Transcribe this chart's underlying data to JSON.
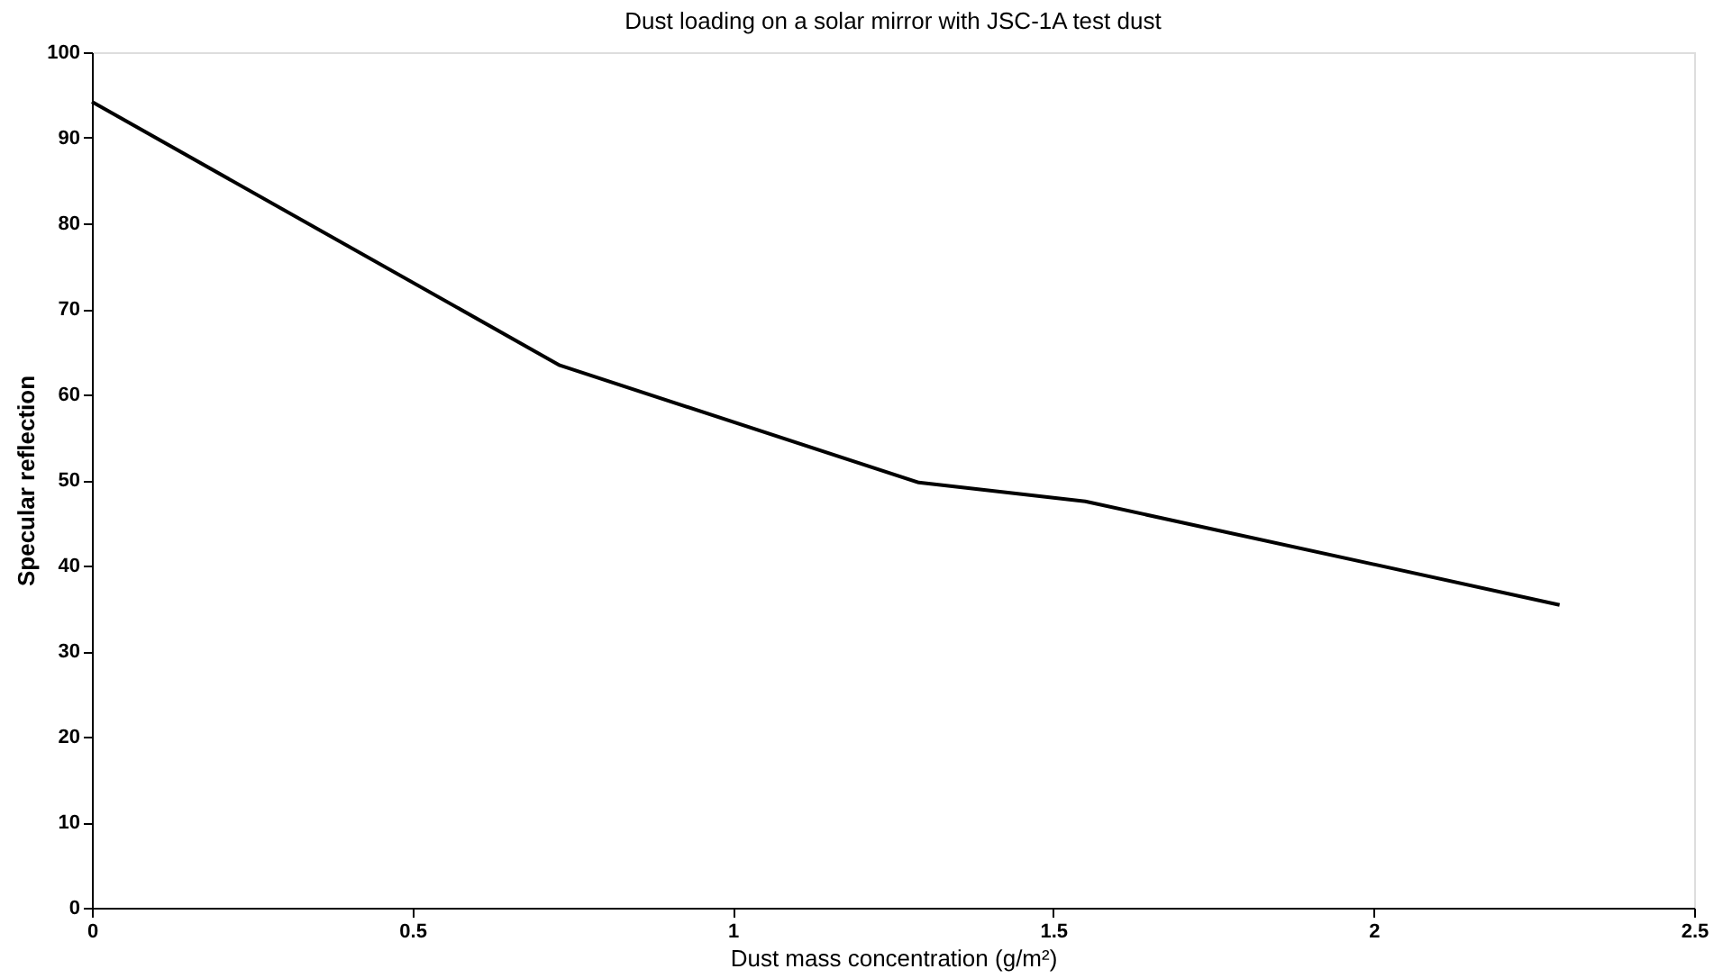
{
  "chart_data": {
    "type": "line",
    "title": "Dust loading on a solar mirror with JSC-1A test dust",
    "xlabel": "Dust mass concentration (g/m²)",
    "ylabel": "Specular reflection",
    "x": [
      0,
      0.73,
      1.29,
      1.55,
      2.29
    ],
    "series": [
      {
        "color": "#000000",
        "values": [
          94.2,
          63.4,
          49.7,
          47.5,
          35.4
        ]
      }
    ],
    "xlim": [
      0,
      2.5
    ],
    "xticks": [
      0,
      0.5,
      1,
      1.5,
      2,
      2.5
    ],
    "ylim": [
      0,
      100
    ],
    "yticks": [
      0,
      10,
      20,
      30,
      40,
      50,
      60,
      70,
      80,
      90,
      100
    ],
    "grid": false,
    "marker": "none",
    "line_style": "solid"
  }
}
